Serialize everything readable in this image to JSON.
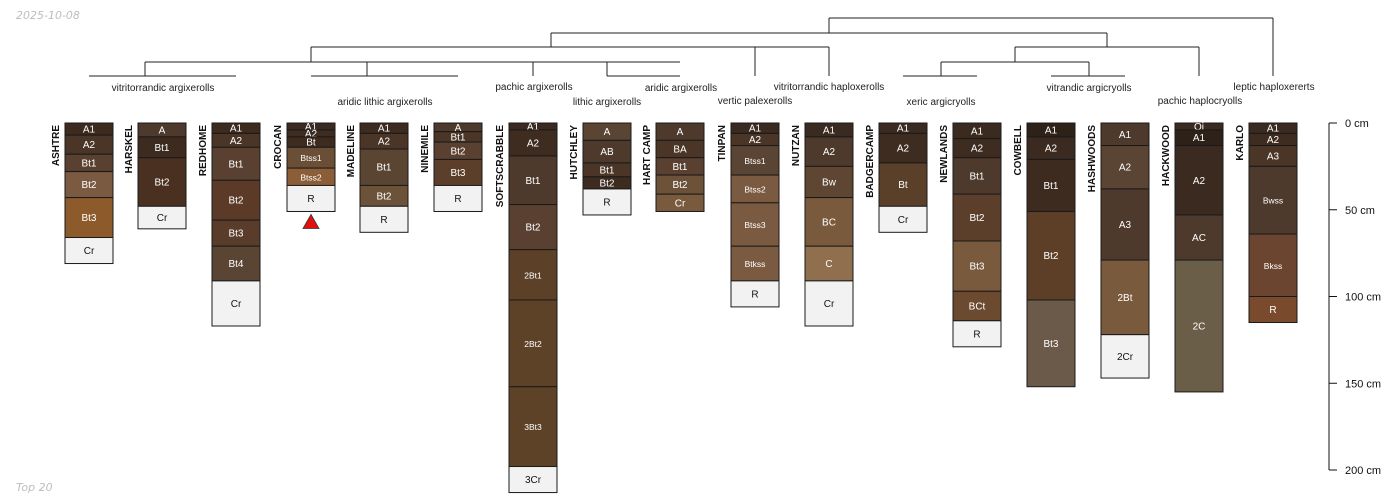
{
  "date": "2025-10-08",
  "footer": "Top 20",
  "depth_axis": {
    "ticks": [
      {
        "depth": 0,
        "label": "0 cm"
      },
      {
        "depth": 50,
        "label": "50 cm"
      },
      {
        "depth": 100,
        "label": "100 cm"
      },
      {
        "depth": 150,
        "label": "150 cm"
      },
      {
        "depth": 200,
        "label": "200 cm"
      }
    ]
  },
  "colors": {
    "dark": "#3b2a1f",
    "medium_dark": "#4e3a2c",
    "medium": "#5e4330",
    "reddish": "#5c3a28",
    "light_brown": "#7a5a3c",
    "orange_brown": "#8c5a2b",
    "tan": "#8f6f4e",
    "gray_brown": "#6b5a48",
    "bedrock": "#f2f2f2",
    "flag": "#e01010"
  },
  "groups": [
    {
      "name": "vitritorrandic argixerolls"
    },
    {
      "name": "aridic lithic argixerolls"
    },
    {
      "name": "pachic argixerolls"
    },
    {
      "name": "lithic argixerolls"
    },
    {
      "name": "aridic argixerolls"
    },
    {
      "name": "vertic palexerolls"
    },
    {
      "name": "vitritorrandic haploxerolls"
    },
    {
      "name": "xeric argicryolls"
    },
    {
      "name": "vitrandic argicryolls"
    },
    {
      "name": "pachic haplocryolls"
    },
    {
      "name": "leptic haploxererts"
    }
  ],
  "profiles": [
    {
      "name": "ASHTRE",
      "horizons": [
        {
          "name": "A1",
          "top": 0,
          "bottom": 7,
          "color": "#3d2b1f"
        },
        {
          "name": "A2",
          "top": 7,
          "bottom": 18,
          "color": "#4a3526"
        },
        {
          "name": "Bt1",
          "top": 18,
          "bottom": 28,
          "color": "#5a4030"
        },
        {
          "name": "Bt2",
          "top": 28,
          "bottom": 43,
          "color": "#7a5a40"
        },
        {
          "name": "Bt3",
          "top": 43,
          "bottom": 66,
          "color": "#8c5a2b"
        },
        {
          "name": "Cr",
          "top": 66,
          "bottom": 81,
          "color": "#f2f2f2"
        }
      ]
    },
    {
      "name": "HARSKEL",
      "horizons": [
        {
          "name": "A",
          "top": 0,
          "bottom": 8,
          "color": "#4e3a2c"
        },
        {
          "name": "Bt1",
          "top": 8,
          "bottom": 20,
          "color": "#3d2b20"
        },
        {
          "name": "Bt2",
          "top": 20,
          "bottom": 48,
          "color": "#4a3020"
        },
        {
          "name": "Cr",
          "top": 48,
          "bottom": 61,
          "color": "#f2f2f2"
        }
      ]
    },
    {
      "name": "REDHOME",
      "horizons": [
        {
          "name": "A1",
          "top": 0,
          "bottom": 6,
          "color": "#3d2b1f"
        },
        {
          "name": "A2",
          "top": 6,
          "bottom": 14,
          "color": "#4a3526"
        },
        {
          "name": "Bt1",
          "top": 14,
          "bottom": 33,
          "color": "#5a4030"
        },
        {
          "name": "Bt2",
          "top": 33,
          "bottom": 56,
          "color": "#5c3a28"
        },
        {
          "name": "Bt3",
          "top": 56,
          "bottom": 71,
          "color": "#5a3c2a"
        },
        {
          "name": "Bt4",
          "top": 71,
          "bottom": 91,
          "color": "#5a4434"
        },
        {
          "name": "Cr",
          "top": 91,
          "bottom": 117,
          "color": "#f2f2f2"
        }
      ]
    },
    {
      "name": "CROCAN",
      "horizons": [
        {
          "name": "A1",
          "top": 0,
          "bottom": 4,
          "color": "#3b2a1f"
        },
        {
          "name": "A2",
          "top": 4,
          "bottom": 8,
          "color": "#3e2c20"
        },
        {
          "name": "Bt",
          "top": 8,
          "bottom": 14,
          "color": "#3d2b20"
        },
        {
          "name": "Btss1",
          "top": 14,
          "bottom": 26,
          "color": "#6b4e36"
        },
        {
          "name": "Btss2",
          "top": 26,
          "bottom": 36,
          "color": "#8c5e38"
        },
        {
          "name": "R",
          "top": 36,
          "bottom": 51,
          "color": "#f2f2f2"
        }
      ]
    },
    {
      "name": "MADELINE",
      "horizons": [
        {
          "name": "A1",
          "top": 0,
          "bottom": 6,
          "color": "#3d2b1f"
        },
        {
          "name": "A2",
          "top": 6,
          "bottom": 15,
          "color": "#4a3526"
        },
        {
          "name": "Bt1",
          "top": 15,
          "bottom": 36,
          "color": "#5a4432"
        },
        {
          "name": "Bt2",
          "top": 36,
          "bottom": 48,
          "color": "#6b5238"
        },
        {
          "name": "R",
          "top": 48,
          "bottom": 63,
          "color": "#f2f2f2"
        }
      ]
    },
    {
      "name": "NINEMILE",
      "horizons": [
        {
          "name": "A",
          "top": 0,
          "bottom": 5,
          "color": "#4e3a2c"
        },
        {
          "name": "Bt1",
          "top": 5,
          "bottom": 11,
          "color": "#4a3526"
        },
        {
          "name": "Bt2",
          "top": 11,
          "bottom": 21,
          "color": "#5a4030"
        },
        {
          "name": "Bt3",
          "top": 21,
          "bottom": 36,
          "color": "#5c3f2a"
        },
        {
          "name": "R",
          "top": 36,
          "bottom": 51,
          "color": "#f2f2f2"
        }
      ]
    },
    {
      "name": "SOFTSCRABBLE",
      "horizons": [
        {
          "name": "A1",
          "top": 0,
          "bottom": 4,
          "color": "#3b2a1f"
        },
        {
          "name": "A2",
          "top": 4,
          "bottom": 19,
          "color": "#3e2c20"
        },
        {
          "name": "Bt1",
          "top": 19,
          "bottom": 47,
          "color": "#4e3a2c"
        },
        {
          "name": "Bt2",
          "top": 47,
          "bottom": 73,
          "color": "#5a4030"
        },
        {
          "name": "2Bt1",
          "top": 73,
          "bottom": 102,
          "color": "#5c4028"
        },
        {
          "name": "2Bt2",
          "top": 102,
          "bottom": 152,
          "color": "#5e4228"
        },
        {
          "name": "3Bt3",
          "top": 152,
          "bottom": 198,
          "color": "#5e4228"
        },
        {
          "name": "3Cr",
          "top": 198,
          "bottom": 213,
          "color": "#f2f2f2"
        }
      ]
    },
    {
      "name": "HUTCHLEY",
      "horizons": [
        {
          "name": "A",
          "top": 0,
          "bottom": 10,
          "color": "#5a4434"
        },
        {
          "name": "AB",
          "top": 10,
          "bottom": 23,
          "color": "#4e3a2c"
        },
        {
          "name": "Bt1",
          "top": 23,
          "bottom": 31,
          "color": "#4a3526"
        },
        {
          "name": "Bt2",
          "top": 31,
          "bottom": 38,
          "color": "#3d2b20"
        },
        {
          "name": "R",
          "top": 38,
          "bottom": 53,
          "color": "#f2f2f2"
        }
      ]
    },
    {
      "name": "HART CAMP",
      "horizons": [
        {
          "name": "A",
          "top": 0,
          "bottom": 10,
          "color": "#4e3a2c"
        },
        {
          "name": "BA",
          "top": 10,
          "bottom": 20,
          "color": "#4a3526"
        },
        {
          "name": "Bt1",
          "top": 20,
          "bottom": 30,
          "color": "#5a4030"
        },
        {
          "name": "Bt2",
          "top": 30,
          "bottom": 41,
          "color": "#6b5238"
        },
        {
          "name": "Cr",
          "top": 41,
          "bottom": 51,
          "color": "#7a5a3c"
        }
      ]
    },
    {
      "name": "TINPAN",
      "horizons": [
        {
          "name": "A1",
          "top": 0,
          "bottom": 6,
          "color": "#3b2a1f"
        },
        {
          "name": "A2",
          "top": 6,
          "bottom": 13,
          "color": "#4a3526"
        },
        {
          "name": "Btss1",
          "top": 13,
          "bottom": 30,
          "color": "#5a4434"
        },
        {
          "name": "Btss2",
          "top": 30,
          "bottom": 46,
          "color": "#7a5a40"
        },
        {
          "name": "Btss3",
          "top": 46,
          "bottom": 71,
          "color": "#7a5a40"
        },
        {
          "name": "Btkss",
          "top": 71,
          "bottom": 91,
          "color": "#7a5a40"
        },
        {
          "name": "R",
          "top": 91,
          "bottom": 106,
          "color": "#f2f2f2"
        }
      ]
    },
    {
      "name": "NUTZAN",
      "horizons": [
        {
          "name": "A1",
          "top": 0,
          "bottom": 8,
          "color": "#3b2a1f"
        },
        {
          "name": "A2",
          "top": 8,
          "bottom": 25,
          "color": "#4e3a2c"
        },
        {
          "name": "Bw",
          "top": 25,
          "bottom": 43,
          "color": "#5e4632"
        },
        {
          "name": "BC",
          "top": 43,
          "bottom": 71,
          "color": "#7a5a3c"
        },
        {
          "name": "C",
          "top": 71,
          "bottom": 91,
          "color": "#8f6f4e"
        },
        {
          "name": "Cr",
          "top": 91,
          "bottom": 117,
          "color": "#f2f2f2"
        }
      ]
    },
    {
      "name": "BADGERCAMP",
      "horizons": [
        {
          "name": "A1",
          "top": 0,
          "bottom": 6,
          "color": "#3b2a1f"
        },
        {
          "name": "A2",
          "top": 6,
          "bottom": 23,
          "color": "#3e2c20"
        },
        {
          "name": "Bt",
          "top": 23,
          "bottom": 48,
          "color": "#5a4028"
        },
        {
          "name": "Cr",
          "top": 48,
          "bottom": 63,
          "color": "#f2f2f2"
        }
      ]
    },
    {
      "name": "NEWLANDS",
      "horizons": [
        {
          "name": "A1",
          "top": 0,
          "bottom": 9,
          "color": "#3b2a1f"
        },
        {
          "name": "A2",
          "top": 9,
          "bottom": 20,
          "color": "#3e2c20"
        },
        {
          "name": "Bt1",
          "top": 20,
          "bottom": 41,
          "color": "#4e3a2c"
        },
        {
          "name": "Bt2",
          "top": 41,
          "bottom": 68,
          "color": "#5c3f2a"
        },
        {
          "name": "Bt3",
          "top": 68,
          "bottom": 97,
          "color": "#7a5a3c"
        },
        {
          "name": "BCt",
          "top": 97,
          "bottom": 114,
          "color": "#6b4a30"
        },
        {
          "name": "R",
          "top": 114,
          "bottom": 129,
          "color": "#f2f2f2"
        }
      ]
    },
    {
      "name": "COWBELL",
      "horizons": [
        {
          "name": "A1",
          "top": 0,
          "bottom": 8,
          "color": "#2e2218"
        },
        {
          "name": "A2",
          "top": 8,
          "bottom": 21,
          "color": "#3b2a1f"
        },
        {
          "name": "Bt1",
          "top": 21,
          "bottom": 51,
          "color": "#3d2b20"
        },
        {
          "name": "Bt2",
          "top": 51,
          "bottom": 102,
          "color": "#5c3f26"
        },
        {
          "name": "Bt3",
          "top": 102,
          "bottom": 152,
          "color": "#6b5a4a"
        }
      ]
    },
    {
      "name": "HASHWOODS",
      "horizons": [
        {
          "name": "A1",
          "top": 0,
          "bottom": 13,
          "color": "#4e3a2c"
        },
        {
          "name": "A2",
          "top": 13,
          "bottom": 38,
          "color": "#5a4434"
        },
        {
          "name": "A3",
          "top": 38,
          "bottom": 79,
          "color": "#4e3a2c"
        },
        {
          "name": "2Bt",
          "top": 79,
          "bottom": 122,
          "color": "#7a5a3c"
        },
        {
          "name": "2Cr",
          "top": 122,
          "bottom": 147,
          "color": "#f2f2f2"
        }
      ]
    },
    {
      "name": "HACKWOOD",
      "horizons": [
        {
          "name": "Oi",
          "top": 0,
          "bottom": 4,
          "color": "#3b2a1f"
        },
        {
          "name": "A1",
          "top": 4,
          "bottom": 13,
          "color": "#2e2218"
        },
        {
          "name": "A2",
          "top": 13,
          "bottom": 53,
          "color": "#3a2a20"
        },
        {
          "name": "AC",
          "top": 53,
          "bottom": 79,
          "color": "#4e3a2c"
        },
        {
          "name": "2C",
          "top": 79,
          "bottom": 155,
          "color": "#6b5e48"
        }
      ]
    },
    {
      "name": "KARLO",
      "horizons": [
        {
          "name": "A1",
          "top": 0,
          "bottom": 6,
          "color": "#3b2a1f"
        },
        {
          "name": "A2",
          "top": 6,
          "bottom": 13,
          "color": "#3e2c20"
        },
        {
          "name": "A3",
          "top": 13,
          "bottom": 25,
          "color": "#4a3526"
        },
        {
          "name": "Bwss",
          "top": 25,
          "bottom": 64,
          "color": "#4e3a2c"
        },
        {
          "name": "Bkss",
          "top": 64,
          "bottom": 100,
          "color": "#6b4530"
        },
        {
          "name": "R",
          "top": 100,
          "bottom": 115,
          "color": "#7a4a2c"
        }
      ]
    }
  ]
}
